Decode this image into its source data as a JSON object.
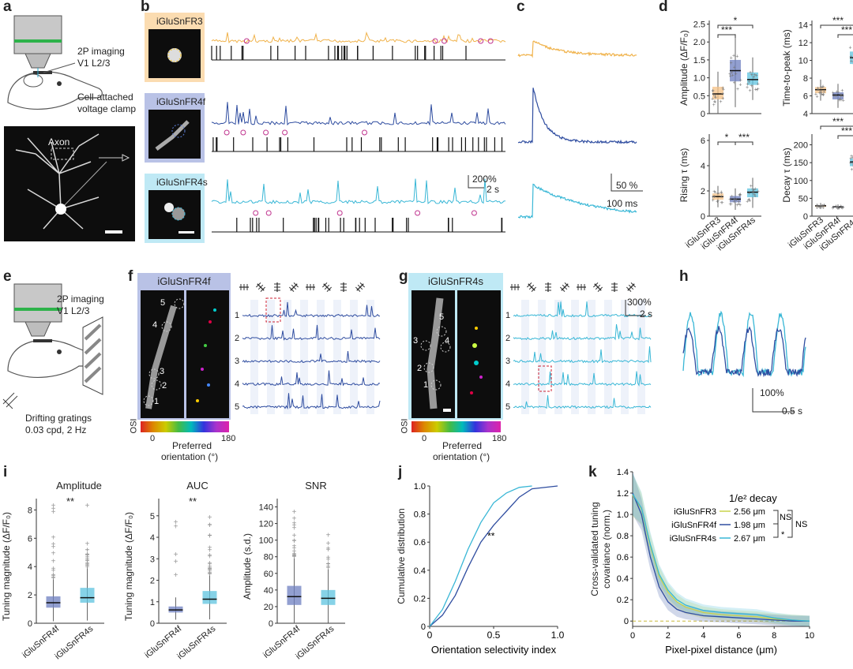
{
  "colors": {
    "fr3": "#f0b24a",
    "fr4f": "#2f4da0",
    "fr4s": "#39b7d6",
    "fr4f_light": "#b9c2e6",
    "fr4s_light": "#bfe9f5",
    "fr3_light": "#fbdcb1",
    "spike": "#111111",
    "marker": "#c0348f",
    "dash": "#cc2233"
  },
  "panels": {
    "a": "a",
    "b": "b",
    "c": "c",
    "d": "d",
    "e": "e",
    "f": "f",
    "g": "g",
    "h": "h",
    "i": "i",
    "j": "j",
    "k": "k"
  },
  "a": {
    "imaging": "2P imaging",
    "region": "V1 L2/3",
    "clamp1": "Cell-attached",
    "clamp2": "voltage clamp",
    "axon": "Axon"
  },
  "b": {
    "label_fr3": "iGluSnFR3",
    "label_fr4f": "iGluSnFR4f",
    "label_fr4s": "iGluSnFR4s",
    "scale_pct": "200%",
    "scale_time": "2 s"
  },
  "c": {
    "scale_pct": "50 %",
    "scale_time": "100 ms"
  },
  "d": {
    "ylabel_amp": "Amplitude (ΔF/F₀)",
    "ylabel_ttp": "Time-to-peak (ms)",
    "ylabel_rise": "Rising τ (ms)",
    "ylabel_decay": "Decay τ (ms)",
    "cats": [
      "iGluSnFR3",
      "iGluSnFR4f",
      "iGluSnFR4s"
    ],
    "sig_single": "*",
    "sig_triple": "***",
    "amp_ticks": [
      "0",
      "0.5",
      "1.0",
      "1.5",
      "2.0",
      "2.5"
    ],
    "ttp_ticks": [
      "4",
      "6",
      "8",
      "10",
      "12",
      "14"
    ],
    "rise_ticks": [
      "0",
      "2",
      "4",
      "6"
    ],
    "decay_ticks": [
      "0",
      "50",
      "100",
      "150",
      "200"
    ]
  },
  "e": {
    "imaging": "2P imaging",
    "region": "V1 L2/3",
    "grat1": "Drifting gratings",
    "grat2": "0.03 cpd, 2 Hz"
  },
  "f": {
    "title": "iGluSnFR4f",
    "osi": "OSI",
    "pref": "Preferred",
    "orient": "orientation (°)",
    "c0": "0",
    "c180": "180",
    "rois": [
      "1",
      "2",
      "3",
      "4",
      "5"
    ]
  },
  "g": {
    "title": "iGluSnFR4s",
    "osi": "OSI",
    "pref": "Preferred",
    "orient": "orientation (°)",
    "c0": "0",
    "c180": "180",
    "rois": [
      "1",
      "2",
      "3",
      "4",
      "5"
    ],
    "scale_pct": "300%",
    "scale_time": "2 s"
  },
  "h": {
    "scale_pct": "100%",
    "scale_time": "0.5 s"
  },
  "i": {
    "title_amp": "Amplitude",
    "title_auc": "AUC",
    "title_snr": "SNR",
    "ylabel_tm": "Tuning magnitude (ΔF/F₀)",
    "ylabel_snr": "Amplitude (s.d.)",
    "cats": [
      "iGluSnFR4f",
      "iGluSnFR4s"
    ],
    "sig": "**",
    "amp_ticks": [
      "0",
      "2",
      "4",
      "6",
      "8"
    ],
    "auc_ticks": [
      "0",
      "1",
      "2",
      "3",
      "4",
      "5"
    ],
    "snr_ticks": [
      "0",
      "20",
      "40",
      "60",
      "80",
      "100",
      "120",
      "140"
    ]
  },
  "j": {
    "ylabel": "Cumulative distribution",
    "xlabel": "Orientation selectivity index",
    "sig": "**",
    "xticks": [
      "0",
      "0.5",
      "1.0"
    ],
    "yticks": [
      "0",
      "0.2",
      "0.4",
      "0.6",
      "0.8",
      "1.0"
    ]
  },
  "k": {
    "ylabel1": "Cross-validated tuning",
    "ylabel2": "covariance (norm.)",
    "xlabel": "Pixel-pixel distance (μm)",
    "legend_title": "1/e² decay",
    "legend": [
      {
        "name": "iGluSnFR3",
        "value": "2.56 μm"
      },
      {
        "name": "iGluSnFR4f",
        "value": "1.98 μm"
      },
      {
        "name": "iGluSnFR4s",
        "value": "2.67 μm"
      }
    ],
    "ns1": "NS",
    "ns2": "NS",
    "star": "*",
    "xticks": [
      "0",
      "2",
      "4",
      "6",
      "8",
      "10"
    ],
    "yticks": [
      "0",
      "0.2",
      "0.4",
      "0.6",
      "0.8",
      "1.0",
      "1.2",
      "1.4"
    ]
  },
  "chart_data": [
    {
      "type": "box",
      "title": "",
      "ylabel": "Amplitude (ΔF/F₀)",
      "categories": [
        "iGluSnFR3",
        "iGluSnFR4f",
        "iGluSnFR4s"
      ],
      "box": [
        {
          "q1": 0.4,
          "median": 0.55,
          "q3": 0.75
        },
        {
          "q1": 0.9,
          "median": 1.2,
          "q3": 1.5
        },
        {
          "q1": 0.8,
          "median": 0.95,
          "q3": 1.15
        }
      ],
      "ylim": [
        0,
        2.6
      ]
    },
    {
      "type": "box",
      "title": "",
      "ylabel": "Time-to-peak (ms)",
      "categories": [
        "iGluSnFR3",
        "iGluSnFR4f",
        "iGluSnFR4s"
      ],
      "box": [
        {
          "q1": 6.3,
          "median": 6.7,
          "q3": 7.0
        },
        {
          "q1": 5.6,
          "median": 6.1,
          "q3": 6.4
        },
        {
          "q1": 9.6,
          "median": 10.3,
          "q3": 11.0
        }
      ],
      "ylim": [
        4,
        14.5
      ]
    },
    {
      "type": "box",
      "title": "",
      "ylabel": "Rising τ (ms)",
      "categories": [
        "iGluSnFR3",
        "iGluSnFR4f",
        "iGluSnFR4s"
      ],
      "box": [
        {
          "q1": 1.3,
          "median": 1.55,
          "q3": 1.8
        },
        {
          "q1": 1.1,
          "median": 1.35,
          "q3": 1.6
        },
        {
          "q1": 1.5,
          "median": 1.9,
          "q3": 2.2
        }
      ],
      "ylim": [
        0,
        6.5
      ]
    },
    {
      "type": "box",
      "title": "",
      "ylabel": "Decay τ (ms)",
      "categories": [
        "iGluSnFR3",
        "iGluSnFR4f",
        "iGluSnFR4s"
      ],
      "box": [
        {
          "q1": 26,
          "median": 29,
          "q3": 31
        },
        {
          "q1": 24,
          "median": 26,
          "q3": 28
        },
        {
          "q1": 140,
          "median": 152,
          "q3": 162
        }
      ],
      "ylim": [
        0,
        230
      ]
    },
    {
      "type": "box",
      "title": "Amplitude",
      "ylabel": "Tuning magnitude (ΔF/F₀)",
      "categories": [
        "iGluSnFR4f",
        "iGluSnFR4s"
      ],
      "box": [
        {
          "q1": 1.1,
          "median": 1.45,
          "q3": 1.9,
          "whisker_hi": 3.2
        },
        {
          "q1": 1.45,
          "median": 1.8,
          "q3": 2.5,
          "whisker_hi": 4.0
        }
      ],
      "ylim": [
        0,
        8.8
      ]
    },
    {
      "type": "box",
      "title": "AUC",
      "ylabel": "Tuning magnitude (ΔF/F₀)",
      "categories": [
        "iGluSnFR4f",
        "iGluSnFR4s"
      ],
      "box": [
        {
          "q1": 0.5,
          "median": 0.62,
          "q3": 0.78,
          "whisker_hi": 1.2
        },
        {
          "q1": 0.9,
          "median": 1.12,
          "q3": 1.5,
          "whisker_hi": 2.3
        }
      ],
      "ylim": [
        0,
        5.8
      ]
    },
    {
      "type": "box",
      "title": "SNR",
      "ylabel": "Amplitude (s.d.)",
      "categories": [
        "iGluSnFR4f",
        "iGluSnFR4s"
      ],
      "box": [
        {
          "q1": 22,
          "median": 32,
          "q3": 45,
          "whisker_hi": 78
        },
        {
          "q1": 22,
          "median": 30,
          "q3": 40,
          "whisker_hi": 65
        }
      ],
      "ylim": [
        0,
        150
      ]
    },
    {
      "type": "line",
      "title": "",
      "xlabel": "Orientation selectivity index",
      "ylabel": "Cumulative distribution",
      "xlim": [
        0,
        1
      ],
      "ylim": [
        0,
        1
      ],
      "series": [
        {
          "name": "iGluSnFR4f",
          "x": [
            0,
            0.1,
            0.2,
            0.3,
            0.4,
            0.5,
            0.6,
            0.7,
            0.8,
            1.0
          ],
          "y": [
            0,
            0.08,
            0.22,
            0.42,
            0.6,
            0.72,
            0.82,
            0.92,
            0.98,
            1.0
          ]
        },
        {
          "name": "iGluSnFR4s",
          "x": [
            0,
            0.1,
            0.2,
            0.3,
            0.4,
            0.5,
            0.6,
            0.7,
            0.8
          ],
          "y": [
            0,
            0.12,
            0.32,
            0.55,
            0.74,
            0.88,
            0.95,
            0.99,
            1.0
          ]
        }
      ]
    },
    {
      "type": "line",
      "title": "",
      "xlabel": "Pixel-pixel distance (μm)",
      "ylabel": "Cross-validated tuning covariance (norm.)",
      "xlim": [
        0,
        10
      ],
      "ylim": [
        -0.05,
        1.4
      ],
      "series": [
        {
          "name": "iGluSnFR3",
          "x": [
            0,
            0.5,
            1,
            1.5,
            2,
            2.5,
            3,
            4,
            5,
            6,
            7,
            8,
            9,
            10
          ],
          "y": [
            1.18,
            1.05,
            0.7,
            0.42,
            0.27,
            0.18,
            0.13,
            0.08,
            0.06,
            0.05,
            0.04,
            0.02,
            0.01,
            0.0
          ]
        },
        {
          "name": "iGluSnFR4f",
          "x": [
            0,
            0.5,
            1,
            1.5,
            2,
            2.5,
            3,
            4,
            5,
            6,
            7,
            8,
            9,
            10
          ],
          "y": [
            1.2,
            1.0,
            0.6,
            0.32,
            0.18,
            0.11,
            0.08,
            0.05,
            0.04,
            0.03,
            0.02,
            0.01,
            0.0,
            0.0
          ]
        },
        {
          "name": "iGluSnFR4s",
          "x": [
            0,
            0.5,
            1,
            1.5,
            2,
            2.5,
            3,
            4,
            5,
            6,
            7,
            8,
            9,
            10
          ],
          "y": [
            1.19,
            1.06,
            0.72,
            0.44,
            0.29,
            0.2,
            0.15,
            0.1,
            0.08,
            0.07,
            0.06,
            0.03,
            0.01,
            0.0
          ]
        }
      ]
    }
  ]
}
